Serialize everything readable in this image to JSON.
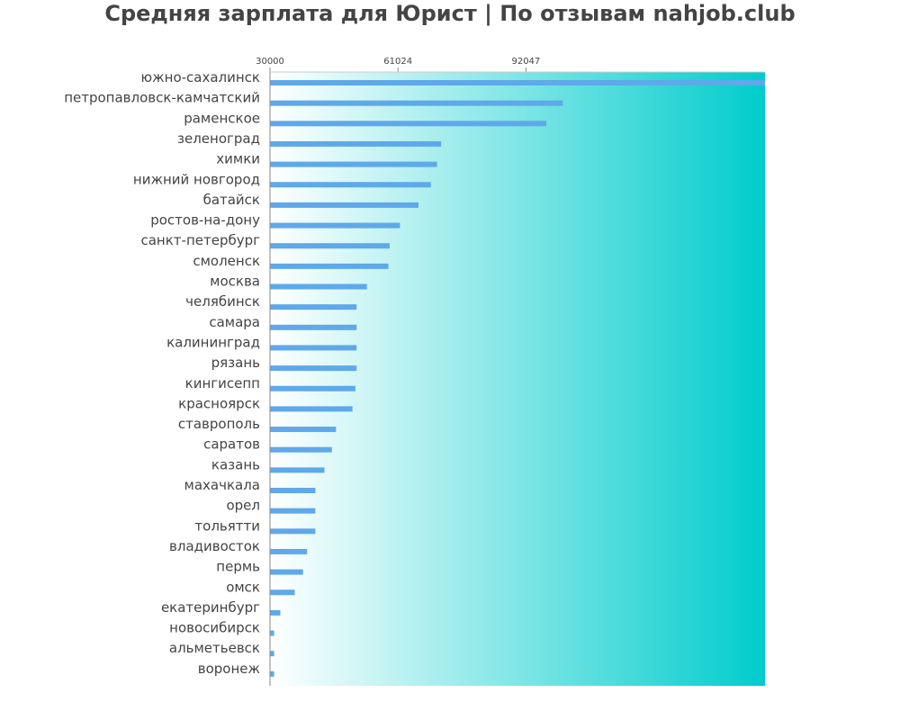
{
  "chart_data": {
    "type": "bar",
    "orientation": "horizontal",
    "title": "Средняя зарплата для Юрист | По отзывам nahjob.club",
    "xlabel": "",
    "ylabel": "",
    "xlim": [
      30000,
      150000
    ],
    "xticks": [
      30000,
      61024,
      92047
    ],
    "tick_labels": [
      "30000",
      "61024",
      "92047"
    ],
    "grid": false,
    "colors": {
      "bar": "#5fa8ea",
      "background_start": "#ffffff",
      "background_end": "#00cccc",
      "axis": "#888888",
      "text": "#444444"
    },
    "categories": [
      "южно-сахалинск",
      "петропавловск-камчатский",
      "раменское",
      "зеленоград",
      "химки",
      "нижний новгород",
      "батайск",
      "ростов-на-дону",
      "санкт-петербург",
      "смоленск",
      "москва",
      "челябинск",
      "самара",
      "калининград",
      "рязань",
      "кингисепп",
      "красноярск",
      "ставрополь",
      "саратов",
      "казань",
      "махачкала",
      "орел",
      "тольятти",
      "владивосток",
      "пермь",
      "омск",
      "екатеринбург",
      "новосибирск",
      "альметьевск",
      "воронеж"
    ],
    "values": [
      150000,
      101000,
      97000,
      71500,
      70500,
      69000,
      66000,
      61500,
      59000,
      58700,
      53500,
      51000,
      51000,
      51000,
      51000,
      50700,
      50000,
      46000,
      45000,
      43200,
      41000,
      41000,
      41000,
      39000,
      38000,
      36000,
      32500,
      31000,
      31000,
      31000
    ]
  }
}
